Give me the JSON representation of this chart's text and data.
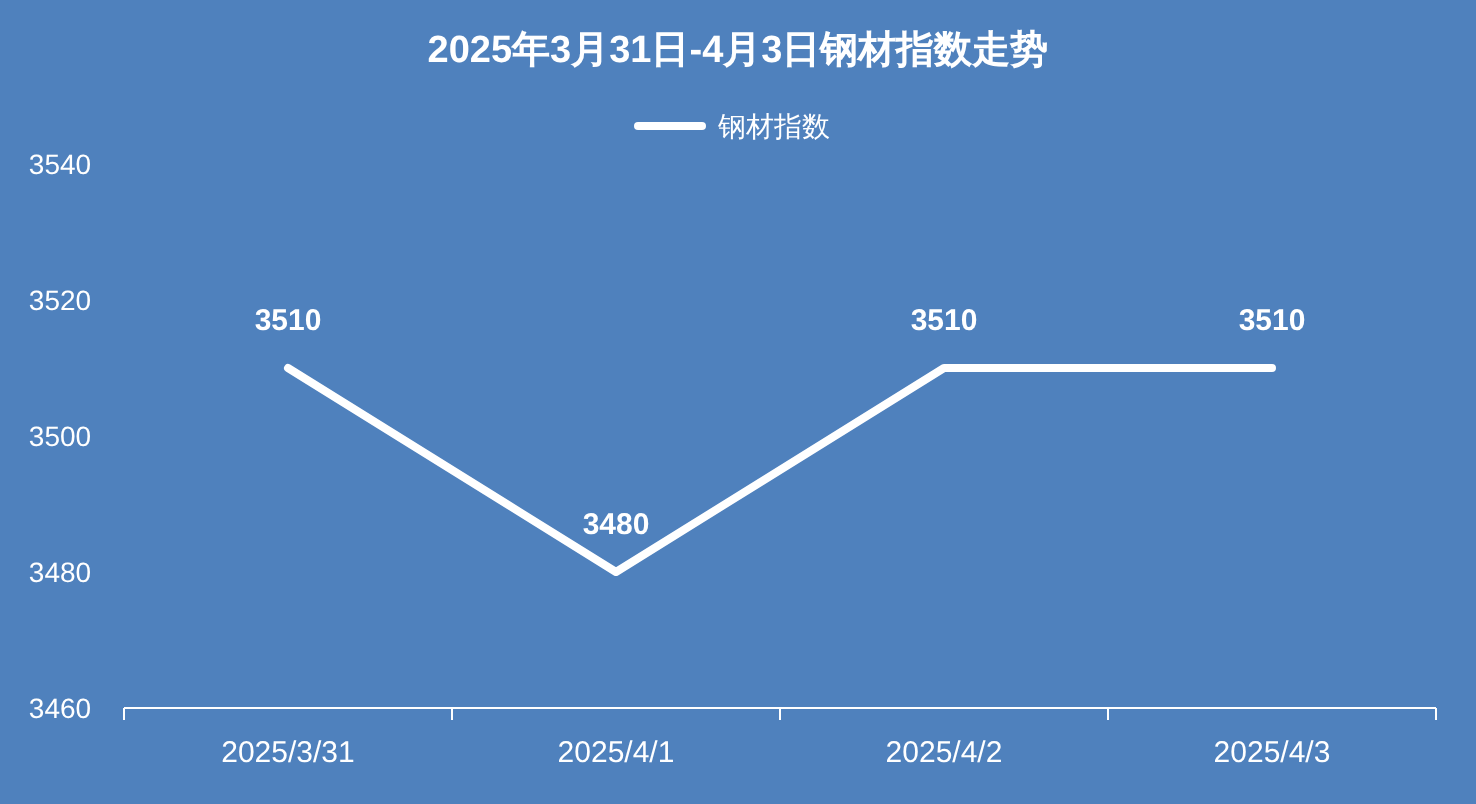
{
  "chart_data": {
    "type": "line",
    "title": "2025年3月31日-4月3日钢材指数走势",
    "categories": [
      "2025/3/31",
      "2025/4/1",
      "2025/4/2",
      "2025/4/3"
    ],
    "series": [
      {
        "name": "钢材指数",
        "color": "#ffffff",
        "values": [
          3510,
          3480,
          3510,
          3510
        ]
      }
    ],
    "ylim": [
      3460,
      3540
    ],
    "yticks": [
      3460,
      3480,
      3500,
      3520,
      3540
    ],
    "data_labels": true,
    "legend": "top",
    "marker": "none",
    "grid": false
  }
}
